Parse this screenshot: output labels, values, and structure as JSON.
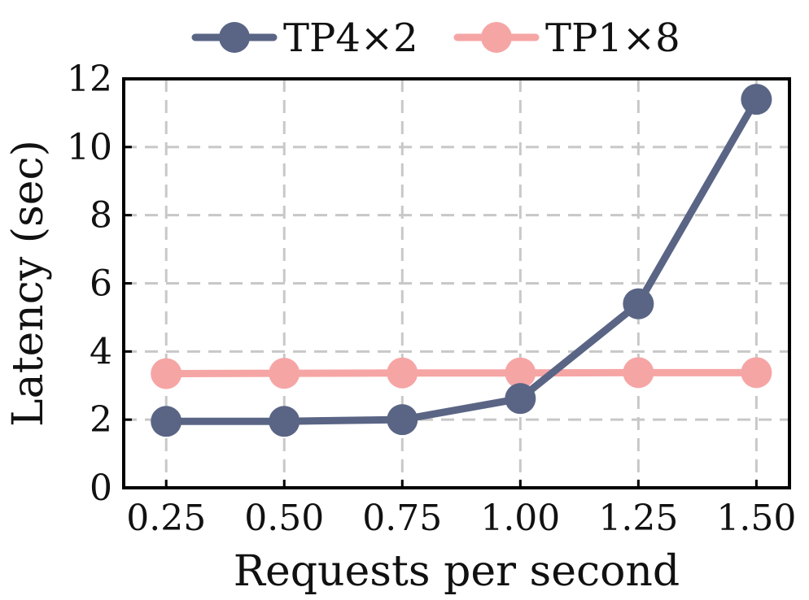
{
  "chart_data": {
    "type": "line",
    "xlabel": "Requests per second",
    "ylabel": "Latency (sec)",
    "x": [
      0.25,
      0.5,
      0.75,
      1.0,
      1.25,
      1.5
    ],
    "x_tick_labels": [
      "0.25",
      "0.50",
      "0.75",
      "1.00",
      "1.25",
      "1.50"
    ],
    "y_ticks": [
      0,
      2,
      4,
      6,
      8,
      10,
      12
    ],
    "xlim": [
      0.16,
      1.57
    ],
    "ylim": [
      0,
      12
    ],
    "grid": true,
    "legend_position": "top-center",
    "series": [
      {
        "name": "TP4×2",
        "color": "#5a6585",
        "values": [
          1.95,
          1.95,
          2.0,
          2.62,
          5.4,
          11.4
        ]
      },
      {
        "name": "TP1×8",
        "color": "#f6a5a5",
        "values": [
          3.35,
          3.36,
          3.37,
          3.37,
          3.38,
          3.38
        ]
      }
    ]
  }
}
